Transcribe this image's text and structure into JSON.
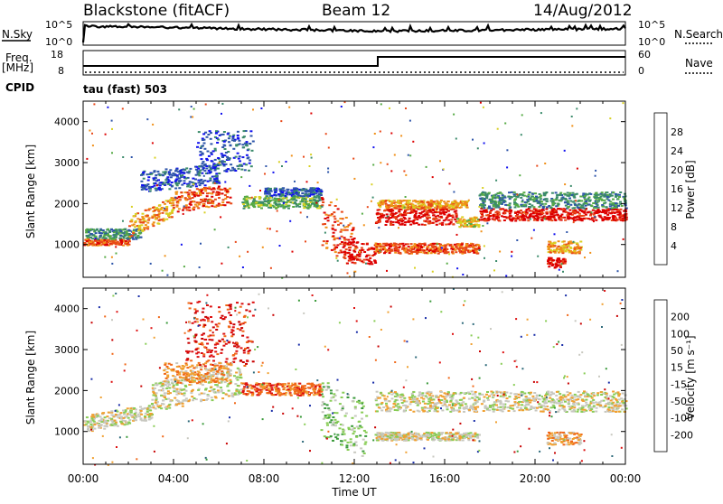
{
  "header": {
    "station": "Blackstone (fitACF)",
    "beam": "Beam 12",
    "date": "14/Aug/2012"
  },
  "top_panels": {
    "nsky_label": "N.Sky",
    "nsky_tick_hi": "10^5",
    "nsky_tick_lo": "10^0",
    "nsearch_label": "N.Search",
    "right_tick_hi": "10^5",
    "right_tick_lo": "10^0",
    "freq_label": "Freq.",
    "freq_unit": "[MHz]",
    "freq_tick_hi": "18",
    "freq_tick_lo": "8",
    "nave_label": "Nave",
    "nave_tick_hi": "60",
    "nave_tick_lo": "0",
    "cpid_label": "CPID",
    "cpid_value": "tau (fast) 503"
  },
  "chart_data": [
    {
      "type": "heatmap",
      "name": "power",
      "ylabel": "Slant Range [km]",
      "ylim": [
        200,
        4500
      ],
      "yticks": [
        "1000",
        "2000",
        "3000",
        "4000"
      ],
      "xlim_hours": [
        0,
        24
      ],
      "xticks": [
        "00:00",
        "04:00",
        "08:00",
        "12:00",
        "16:00",
        "20:00",
        "00:00"
      ],
      "colorbar": {
        "label": "Power [dB]",
        "ticks": [
          "4",
          "8",
          "12",
          "16",
          "20",
          "24",
          "28"
        ],
        "colors": [
          "#1010ee",
          "#2e55aa",
          "#3a8a6a",
          "#55aa44",
          "#d8d022",
          "#f09018",
          "#e84818",
          "#dd0000"
        ]
      },
      "bands": [
        {
          "t0": 0.0,
          "t1": 2.0,
          "r0": 1000,
          "r1": 1150,
          "dr": 0,
          "level": 6
        },
        {
          "t0": 0.0,
          "t1": 2.5,
          "r0": 1150,
          "r1": 1400,
          "dr": 0,
          "level": 2
        },
        {
          "t0": 2.0,
          "t1": 4.0,
          "r0": 1200,
          "r1": 1700,
          "dr": 500,
          "level": 5
        },
        {
          "t0": 4.0,
          "t1": 6.5,
          "r0": 1800,
          "r1": 2300,
          "dr": 200,
          "level": 6
        },
        {
          "t0": 2.5,
          "t1": 6.0,
          "r0": 2300,
          "r1": 2800,
          "dr": 200,
          "level": 1
        },
        {
          "t0": 5.0,
          "t1": 7.5,
          "r0": 2800,
          "r1": 3800,
          "dr": 0,
          "level": 1
        },
        {
          "t0": 7.0,
          "t1": 10.5,
          "r0": 1900,
          "r1": 2200,
          "dr": 0,
          "level": 3
        },
        {
          "t0": 8.0,
          "t1": 10.5,
          "r0": 2200,
          "r1": 2400,
          "dr": 0,
          "level": 1
        },
        {
          "t0": 10.5,
          "t1": 12.0,
          "r0": 2300,
          "r1": 1000,
          "dr": -800,
          "level": 6
        },
        {
          "t0": 11.5,
          "t1": 12.9,
          "r0": 700,
          "r1": 1200,
          "dr": -200,
          "level": 7
        },
        {
          "t0": 12.9,
          "t1": 16.5,
          "r0": 1500,
          "r1": 1900,
          "dr": 0,
          "level": 7
        },
        {
          "t0": 13.0,
          "t1": 17.0,
          "r0": 1900,
          "r1": 2100,
          "dr": 0,
          "level": 5
        },
        {
          "t0": 12.9,
          "t1": 17.5,
          "r0": 800,
          "r1": 1050,
          "dr": 0,
          "level": 6
        },
        {
          "t0": 16.5,
          "t1": 17.5,
          "r0": 1450,
          "r1": 1700,
          "dr": 0,
          "level": 4
        },
        {
          "t0": 17.5,
          "t1": 24.0,
          "r0": 1600,
          "r1": 1900,
          "dr": 0,
          "level": 7
        },
        {
          "t0": 17.5,
          "t1": 24.0,
          "r0": 1900,
          "r1": 2300,
          "dr": 0,
          "level": 2
        },
        {
          "t0": 20.5,
          "t1": 22.0,
          "r0": 800,
          "r1": 1100,
          "dr": 0,
          "level": 5
        },
        {
          "t0": 20.5,
          "t1": 21.3,
          "r0": 450,
          "r1": 700,
          "dr": 0,
          "level": 7
        }
      ]
    },
    {
      "type": "heatmap",
      "name": "velocity",
      "ylabel": "Slant Range [km]",
      "ylim": [
        200,
        4500
      ],
      "yticks": [
        "1000",
        "2000",
        "3000",
        "4000"
      ],
      "xlim_hours": [
        0,
        24
      ],
      "xticks": [
        "00:00",
        "04:00",
        "08:00",
        "12:00",
        "16:00",
        "20:00",
        "00:00"
      ],
      "xlabel": "Time UT",
      "colorbar": {
        "label": "Velocity [m s⁻¹]",
        "ticks": [
          "200",
          "100",
          "50",
          "15",
          "-15",
          "-50",
          "-100",
          "-200"
        ],
        "colors": [
          "#1a2ea8",
          "#2e6a7a",
          "#3a9a3a",
          "#88cc55",
          "#c8c8c0",
          "#f0a030",
          "#f06818",
          "#dd1010",
          "#c80000"
        ]
      },
      "bands": [
        {
          "t0": 0.0,
          "t1": 3.0,
          "r0": 1000,
          "r1": 1400,
          "dr": 300,
          "level": 4
        },
        {
          "t0": 3.0,
          "t1": 7.0,
          "r0": 1500,
          "r1": 2200,
          "dr": 400,
          "level": 4
        },
        {
          "t0": 4.5,
          "t1": 7.5,
          "r0": 2600,
          "r1": 4200,
          "dr": 0,
          "level": 7
        },
        {
          "t0": 3.5,
          "t1": 6.5,
          "r0": 2200,
          "r1": 2700,
          "dr": 0,
          "level": 5
        },
        {
          "t0": 7.0,
          "t1": 10.5,
          "r0": 1900,
          "r1": 2200,
          "dr": 0,
          "level": 6
        },
        {
          "t0": 10.5,
          "t1": 12.5,
          "r0": 2300,
          "r1": 900,
          "dr": -600,
          "level": 3
        },
        {
          "t0": 12.9,
          "t1": 24.0,
          "r0": 1500,
          "r1": 2000,
          "dr": 0,
          "level": 4
        },
        {
          "t0": 12.9,
          "t1": 17.5,
          "r0": 800,
          "r1": 1000,
          "dr": 0,
          "level": 4
        },
        {
          "t0": 20.5,
          "t1": 22.0,
          "r0": 700,
          "r1": 1000,
          "dr": 0,
          "level": 5
        }
      ]
    }
  ]
}
